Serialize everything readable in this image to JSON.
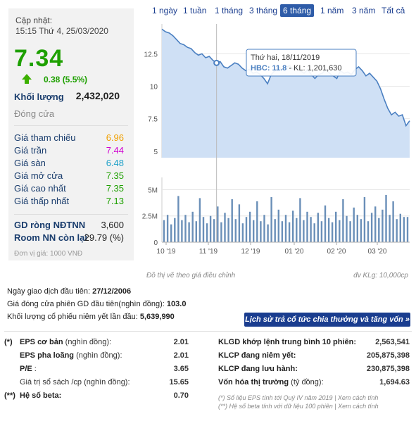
{
  "summary": {
    "updated_label": "Cập nhật:",
    "updated_time": "15:15 Thứ 4, 25/03/2020",
    "price": "7.34",
    "change": "0.38 (5.5%)",
    "volume_label": "Khối lượng",
    "volume_value": "2,432,020",
    "status": "Đóng cửa",
    "prices": [
      {
        "label": "Giá tham chiếu",
        "value": "6.96",
        "color": "#f0a000"
      },
      {
        "label": "Giá trần",
        "value": "7.44",
        "color": "#d000d0"
      },
      {
        "label": "Giá sàn",
        "value": "6.48",
        "color": "#1ea0c8"
      },
      {
        "label": "Giá mở cửa",
        "value": "7.35",
        "color": "#1ea000"
      },
      {
        "label": "Giá cao nhất",
        "value": "7.35",
        "color": "#1ea000"
      },
      {
        "label": "Giá thấp nhất",
        "value": "7.13",
        "color": "#1ea000"
      }
    ],
    "foreign": [
      {
        "label": "GD ròng NĐTNN",
        "value": "3,600"
      },
      {
        "label": "Room NN còn lại",
        "value": "29.79 (%)"
      }
    ],
    "unit_note": "Đơn vị giá: 1000 VNĐ"
  },
  "tabs": [
    {
      "label": "1 ngày",
      "active": false
    },
    {
      "label": "1 tuần",
      "active": false
    },
    {
      "label": "1 tháng",
      "active": false
    },
    {
      "label": "3 tháng",
      "active": false
    },
    {
      "label": "6 tháng",
      "active": true
    },
    {
      "label": "1 năm",
      "active": false
    },
    {
      "label": "3 năm",
      "active": false
    },
    {
      "label": "Tất cả",
      "active": false
    }
  ],
  "chart_data": {
    "type": "area",
    "price_axis_ticks": [
      "12.5",
      "10",
      "7.5",
      "5"
    ],
    "volume_axis_ticks": [
      "5M",
      "2.5M",
      "0"
    ],
    "x_ticks": [
      "10 '19",
      "11 '19",
      "12 '19",
      "01 '20",
      "02 '20",
      "03 '20"
    ],
    "price_series": [
      14.4,
      14.2,
      14.1,
      13.9,
      13.6,
      13.3,
      13.2,
      13.0,
      12.9,
      12.6,
      12.4,
      12.5,
      12.2,
      12.3,
      12.0,
      11.8,
      11.9,
      11.5,
      11.4,
      11.6,
      11.8,
      11.7,
      11.4,
      11.2,
      11.3,
      11.0,
      11.1,
      10.9,
      10.6,
      10.2,
      10.9,
      11.2,
      11.5,
      11.3,
      11.4,
      11.6,
      11.3,
      11.5,
      11.2,
      11.0,
      11.3,
      10.9,
      10.6,
      10.9,
      11.0,
      11.3,
      11.0,
      10.8,
      10.6,
      11.2,
      11.0,
      11.1,
      10.9,
      11.3,
      11.5,
      11.2,
      10.8,
      11.0,
      10.7,
      10.4,
      9.8,
      9.0,
      8.3,
      7.8,
      8.0,
      7.7,
      7.8,
      6.96,
      7.34
    ],
    "volume_series": [
      2.1,
      2.6,
      1.7,
      2.3,
      4.4,
      2.1,
      2.6,
      1.9,
      2.9,
      2.0,
      4.2,
      2.4,
      1.8,
      2.5,
      2.2,
      3.4,
      1.9,
      2.8,
      2.3,
      4.1,
      2.2,
      3.6,
      1.8,
      2.4,
      2.9,
      2.1,
      3.9,
      2.0,
      2.6,
      1.7,
      4.3,
      2.2,
      3.1,
      2.0,
      2.6,
      1.9,
      3.0,
      2.3,
      4.2,
      2.1,
      2.9,
      2.4,
      1.8,
      2.8,
      2.0,
      3.5,
      2.3,
      1.9,
      2.9,
      2.1,
      4.1,
      2.5,
      2.0,
      3.3,
      2.6,
      2.2,
      4.3,
      2.0,
      2.8,
      3.4,
      2.3,
      3.1,
      4.5,
      2.6,
      3.9,
      2.2,
      2.7,
      2.4,
      2.4
    ],
    "price_range": [
      4.5,
      14.8
    ],
    "volume_range": [
      0,
      5.5
    ],
    "tooltip": {
      "date": "Thứ hai, 18/11/2019",
      "ticker": "HBC:",
      "price": "11.8",
      "volume": "- KL: 1,201,630"
    },
    "note_left": "Đồ thị vẽ theo giá điều chỉnh",
    "note_right": "đv KLg: 10,000cp",
    "colors": {
      "line": "#4a7fc1",
      "fill": "#cfe0f5",
      "bar": "#6a8fb8"
    }
  },
  "info": {
    "first_trade": {
      "label": "Ngày giao dịch đầu tiên: ",
      "value": "27/12/2006"
    },
    "first_close": {
      "label": "Giá đóng cửa phiên GD đầu tiên(nghìn đồng): ",
      "value": "103.0"
    },
    "first_volume": {
      "label": "Khối lượng cổ phiếu niêm yết lần đầu: ",
      "value": "5,639,990"
    },
    "history_button": "Lịch sử trả cổ tức chia thưởng và tăng vốn »"
  },
  "fundamentals_left": [
    {
      "mark": "(*)",
      "label": "EPS cơ bản",
      "sub": " (nghìn đồng):",
      "value": "2.01"
    },
    {
      "mark": "",
      "label": "EPS pha loãng",
      "sub": " (nghìn đồng):",
      "value": "2.01"
    },
    {
      "mark": "",
      "label": "P/E",
      "sub": " :",
      "value": "3.65"
    },
    {
      "mark": "",
      "label": "",
      "sub": "Giá trị sổ sách /cp (nghìn đồng):",
      "value": "15.65"
    },
    {
      "mark": "(**)",
      "label": "Hệ số beta:",
      "sub": "",
      "value": "0.70"
    }
  ],
  "fundamentals_right": [
    {
      "label": "KLGD khớp lệnh trung bình 10 phiên:",
      "value": "2,563,541"
    },
    {
      "label": "KLCP đang niêm yết:",
      "value": "205,875,398"
    },
    {
      "label": "KLCP đang lưu hành:",
      "value": "230,875,398"
    },
    {
      "label": "Vốn hóa thị trường",
      "sub": " (tỷ đồng):",
      "value": "1,694.63"
    }
  ],
  "footnotes": [
    "(*) Số liệu EPS tính tới Quý IV năm 2019 | Xem cách tính",
    "(**) Hệ số beta tính với dữ liệu 100 phiên | Xem cách tính"
  ]
}
